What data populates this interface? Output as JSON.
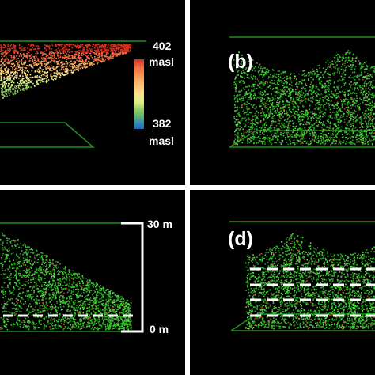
{
  "panels": {
    "a": {
      "legend_max": "402",
      "legend_max_unit": "masl",
      "legend_min": "382",
      "legend_min_unit": "masl"
    },
    "b": {
      "label": "(b)"
    },
    "c": {
      "scale_top": "30 m",
      "scale_bottom": "0 m"
    },
    "d": {
      "label": "(d)"
    }
  },
  "colors": {
    "panel_bg": "#000000",
    "separator": "#ffffff",
    "outline": "#1f8f1f",
    "points_green": "#34c82c",
    "dashes": "#ffffff"
  }
}
